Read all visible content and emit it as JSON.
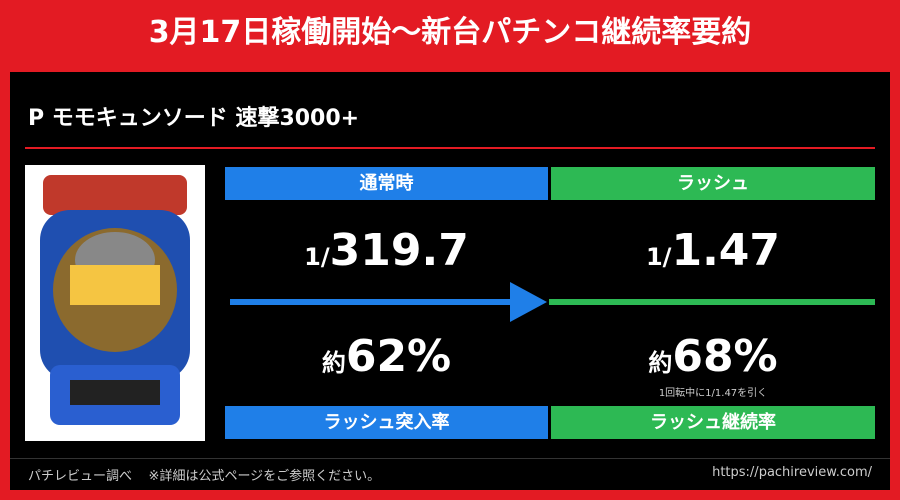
{
  "header": {
    "title": "3月17日稼働開始〜新台パチンコ継続率要約"
  },
  "machine": {
    "name": "P モモキュンソード 速撃3000+"
  },
  "normal": {
    "label": "通常時",
    "odds_prefix": "1/",
    "odds": "319.7",
    "rate_prefix": "約",
    "rate": "62%",
    "rate_label": "ラッシュ突入率"
  },
  "rush": {
    "label": "ラッシュ",
    "odds_prefix": "1/",
    "odds": "1.47",
    "rate_prefix": "約",
    "rate": "68%",
    "note": "1回転中に1/1.47を引く",
    "rate_label": "ラッシュ継続率"
  },
  "footer": {
    "source": "パチレビュー調べ",
    "disclaimer": "※詳細は公式ページをご参照ください。",
    "url": "https://pachireview.com/"
  }
}
